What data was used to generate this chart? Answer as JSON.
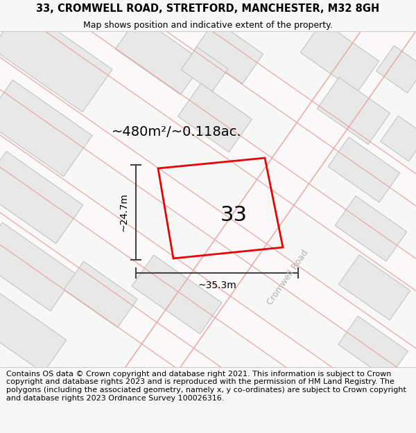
{
  "title_line1": "33, CROMWELL ROAD, STRETFORD, MANCHESTER, M32 8GH",
  "title_line2": "Map shows position and indicative extent of the property.",
  "footer_text": "Contains OS data © Crown copyright and database right 2021. This information is subject to Crown copyright and database rights 2023 and is reproduced with the permission of HM Land Registry. The polygons (including the associated geometry, namely x, y co-ordinates) are subject to Crown copyright and database rights 2023 Ordnance Survey 100026316.",
  "area_label": "~480m²/~0.118ac.",
  "width_label": "~35.3m",
  "height_label": "~24.7m",
  "number_label": "33",
  "road_label": "Cromwell Road",
  "page_bg": "#f7f7f7",
  "map_bg": "#f9f7f7",
  "building_fill": "#e8e8e8",
  "building_edge": "#c4c4c4",
  "road_fill": "#ffffff",
  "street_line_color": "#e8a8a8",
  "highlight_edge": "#ee0000",
  "dim_line_color": "#444444",
  "road_label_color": "#b0b0b0",
  "title_fontsize": 10.5,
  "subtitle_fontsize": 9.0,
  "area_fontsize": 14,
  "num_fontsize": 22,
  "dim_fontsize": 10,
  "road_fontsize": 9,
  "footer_fontsize": 8.0
}
